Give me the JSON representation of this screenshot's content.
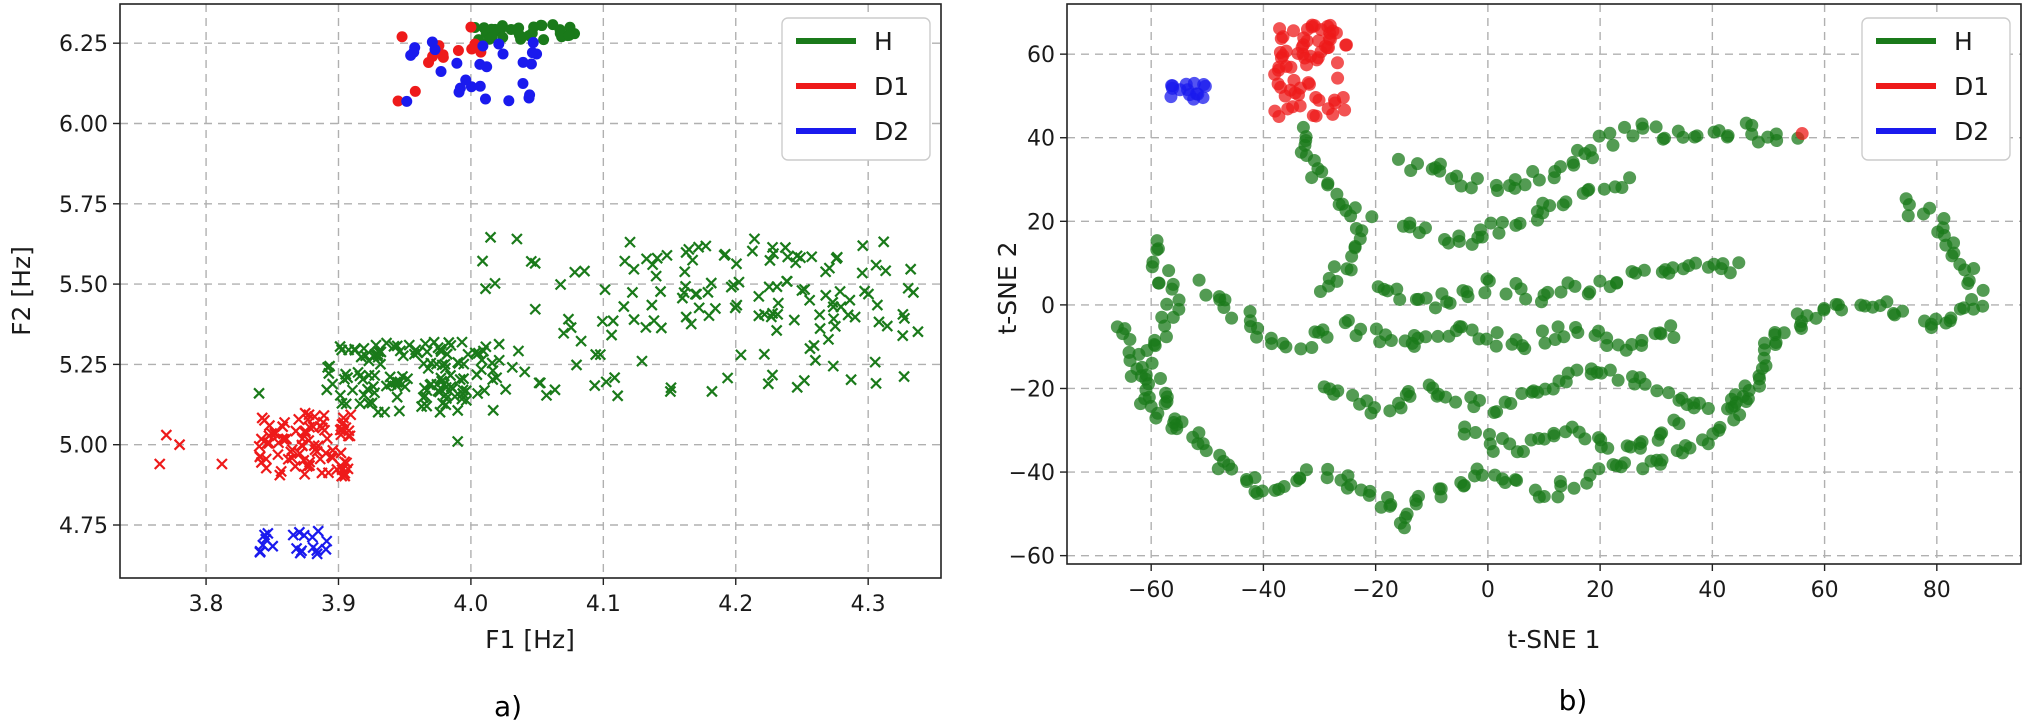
{
  "colors": {
    "H": "#1a7a1a",
    "D1": "#ee1a1a",
    "D2": "#1a1aee"
  },
  "chart_data": [
    {
      "type": "scatter",
      "panel_label": "a)",
      "xlabel": "F1 [Hz]",
      "ylabel": "F2 [Hz]",
      "xlim": [
        3.735,
        4.355
      ],
      "ylim": [
        4.585,
        6.372
      ],
      "xticks": [
        "3.8",
        "3.9",
        "4.0",
        "4.1",
        "4.2",
        "4.3"
      ],
      "yticks": [
        "4.75",
        "5.00",
        "5.25",
        "5.50",
        "5.75",
        "6.00",
        "6.25"
      ],
      "grid": true,
      "legend": {
        "placement": "top-right",
        "entries": [
          "H",
          "D1",
          "D2"
        ]
      },
      "series": [
        {
          "name": "H",
          "marker": "x",
          "clusters": [
            {
              "x": [
                3.89,
                4.02
              ],
              "y": [
                5.1,
                5.32
              ],
              "n": 130
            },
            {
              "x": [
                4.0,
                4.34
              ],
              "y": [
                5.15,
                5.65
              ],
              "n": 110
            },
            {
              "x": [
                4.1,
                4.32
              ],
              "y": [
                5.4,
                5.62
              ],
              "n": 50
            }
          ],
          "points": [
            {
              "x": 3.84,
              "y": 5.16
            },
            {
              "x": 3.99,
              "y": 5.01
            },
            {
              "x": 4.25,
              "y": 5.48
            }
          ]
        },
        {
          "name": "D1",
          "marker": "x",
          "clusters": [
            {
              "x": [
                3.84,
                3.91
              ],
              "y": [
                4.9,
                5.1
              ],
              "n": 90
            }
          ],
          "points": [
            {
              "x": 3.765,
              "y": 4.94
            },
            {
              "x": 3.77,
              "y": 5.03
            },
            {
              "x": 3.78,
              "y": 5.0
            },
            {
              "x": 3.812,
              "y": 4.94
            }
          ]
        },
        {
          "name": "D2",
          "marker": "x",
          "clusters": [
            {
              "x": [
                3.84,
                3.9
              ],
              "y": [
                4.66,
                4.74
              ],
              "n": 20
            }
          ],
          "points": []
        },
        {
          "name": "H",
          "marker": "o",
          "clusters": [
            {
              "x": [
                4.0,
                4.08
              ],
              "y": [
                6.26,
                6.31
              ],
              "n": 35
            }
          ],
          "points": []
        },
        {
          "name": "D1",
          "marker": "o",
          "clusters": [
            {
              "x": [
                3.97,
                4.02
              ],
              "y": [
                6.2,
                6.28
              ],
              "n": 8
            }
          ],
          "points": [
            {
              "x": 3.945,
              "y": 6.07
            },
            {
              "x": 3.948,
              "y": 6.27
            },
            {
              "x": 3.958,
              "y": 6.1
            },
            {
              "x": 3.968,
              "y": 6.19
            },
            {
              "x": 4.0,
              "y": 6.3
            }
          ]
        },
        {
          "name": "D2",
          "marker": "o",
          "clusters": [
            {
              "x": [
                3.95,
                4.05
              ],
              "y": [
                6.06,
                6.26
              ],
              "n": 28
            }
          ],
          "points": []
        }
      ]
    },
    {
      "type": "scatter",
      "panel_label": "b)",
      "xlabel": "t-SNE 1",
      "ylabel": "t-SNE 2",
      "xlim": [
        -75,
        95
      ],
      "ylim": [
        -62,
        72
      ],
      "xticks": [
        "−60",
        "−40",
        "−20",
        "0",
        "20",
        "40",
        "60",
        "80"
      ],
      "yticks": [
        "−60",
        "−40",
        "−20",
        "0",
        "20",
        "40",
        "60"
      ],
      "grid": true,
      "legend": {
        "placement": "top-right",
        "entries": [
          "H",
          "D1",
          "D2"
        ]
      },
      "series": [
        {
          "name": "H",
          "marker": "o",
          "paths": [
            [
              [
                -33,
                42
              ],
              [
                -30,
                30
              ],
              [
                -22,
                20
              ],
              [
                -25,
                10
              ],
              [
                -30,
                2
              ]
            ],
            [
              [
                -60,
                15
              ],
              [
                -56,
                0
              ],
              [
                -60,
                -15
              ],
              [
                -55,
                -30
              ],
              [
                -45,
                -40
              ],
              [
                -40,
                -45
              ],
              [
                -30,
                -40
              ],
              [
                -20,
                -45
              ],
              [
                -15,
                -52
              ],
              [
                -10,
                -45
              ],
              [
                0,
                -40
              ],
              [
                10,
                -45
              ],
              [
                20,
                -40
              ]
            ],
            [
              [
                -65,
                -5
              ],
              [
                -62,
                -20
              ],
              [
                -55,
                -30
              ]
            ],
            [
              [
                -50,
                5
              ],
              [
                -42,
                -5
              ],
              [
                -35,
                -10
              ],
              [
                -25,
                -5
              ],
              [
                -15,
                -10
              ],
              [
                -5,
                -5
              ],
              [
                5,
                -10
              ],
              [
                15,
                -5
              ],
              [
                25,
                -10
              ],
              [
                35,
                -5
              ]
            ],
            [
              [
                -30,
                -20
              ],
              [
                -20,
                -25
              ],
              [
                -10,
                -20
              ],
              [
                0,
                -25
              ],
              [
                10,
                -20
              ],
              [
                20,
                -15
              ],
              [
                30,
                -20
              ],
              [
                40,
                -25
              ],
              [
                50,
                -20
              ]
            ],
            [
              [
                -15,
                35
              ],
              [
                -5,
                30
              ],
              [
                5,
                28
              ],
              [
                15,
                35
              ],
              [
                25,
                42
              ],
              [
                35,
                40
              ],
              [
                45,
                42
              ],
              [
                55,
                38
              ]
            ],
            [
              [
                -15,
                20
              ],
              [
                -5,
                15
              ],
              [
                5,
                20
              ],
              [
                15,
                25
              ],
              [
                25,
                30
              ]
            ],
            [
              [
                -20,
                5
              ],
              [
                -10,
                0
              ],
              [
                0,
                5
              ],
              [
                10,
                2
              ],
              [
                20,
                5
              ],
              [
                30,
                8
              ],
              [
                40,
                10
              ],
              [
                45,
                8
              ]
            ],
            [
              [
                -5,
                -30
              ],
              [
                5,
                -35
              ],
              [
                15,
                -30
              ],
              [
                25,
                -35
              ],
              [
                35,
                -28
              ]
            ],
            [
              [
                50,
                -10
              ],
              [
                55,
                -5
              ],
              [
                60,
                0
              ],
              [
                70,
                0
              ],
              [
                80,
                -5
              ],
              [
                88,
                0
              ],
              [
                85,
                10
              ],
              [
                80,
                20
              ],
              [
                73,
                25
              ]
            ],
            [
              [
                50,
                -10
              ],
              [
                45,
                -25
              ],
              [
                35,
                -35
              ],
              [
                20,
                -40
              ]
            ]
          ]
        },
        {
          "name": "D1",
          "marker": "o",
          "clusters": [
            {
              "x": [
                -38,
                -25
              ],
              "y": [
                45,
                67
              ],
              "n": 70
            }
          ],
          "points": [
            {
              "x": 56,
              "y": 41
            }
          ]
        },
        {
          "name": "D2",
          "marker": "o",
          "clusters": [
            {
              "x": [
                -57,
                -50
              ],
              "y": [
                49,
                53
              ],
              "n": 15
            }
          ],
          "points": []
        }
      ]
    }
  ]
}
